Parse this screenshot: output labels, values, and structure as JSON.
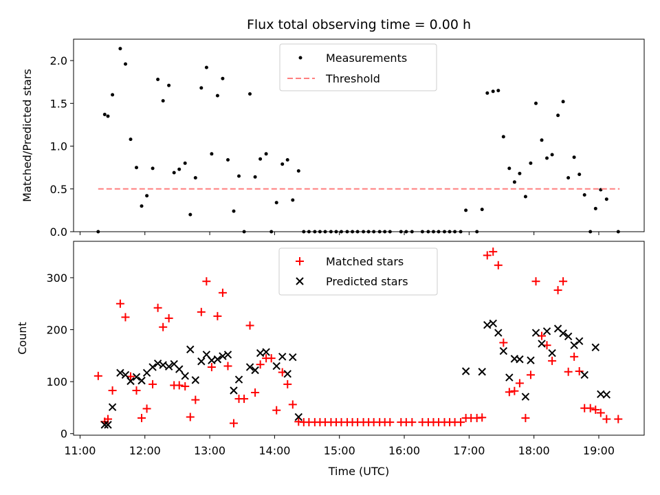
{
  "colors": {
    "measurement": "#000000",
    "threshold": "#ff7f7f",
    "matched": "#ff0000",
    "predicted": "#000000"
  },
  "chart_data": [
    {
      "type": "scatter",
      "title": "Flux total observing time = 0.00 h",
      "xlabel": "",
      "ylabel": "Matched/Predicted stars",
      "xlim": [
        10.9,
        19.7
      ],
      "ylim": [
        0,
        2.25
      ],
      "yticks": [
        0.0,
        0.5,
        1.0,
        1.5,
        2.0
      ],
      "ytick_labels": [
        "0.0",
        "0.5",
        "1.0",
        "1.5",
        "2.0"
      ],
      "legend_position": "top-center",
      "legend": [
        "Measurements",
        "Threshold"
      ],
      "threshold": {
        "name": "Threshold",
        "y": 0.5,
        "x": [
          11.28,
          19.32
        ]
      },
      "series": [
        {
          "name": "Measurements",
          "x": [
            11.28,
            11.38,
            11.43,
            11.5,
            11.62,
            11.7,
            11.78,
            11.87,
            11.95,
            12.03,
            12.12,
            12.2,
            12.28,
            12.37,
            12.45,
            12.53,
            12.62,
            12.7,
            12.78,
            12.87,
            12.95,
            13.03,
            13.12,
            13.2,
            13.28,
            13.37,
            13.45,
            13.53,
            13.62,
            13.7,
            13.78,
            13.87,
            13.95,
            14.03,
            14.12,
            14.2,
            14.28,
            14.37,
            14.45,
            14.53,
            14.62,
            14.7,
            14.78,
            14.87,
            14.95,
            15.03,
            15.12,
            15.2,
            15.28,
            15.37,
            15.45,
            15.53,
            15.62,
            15.7,
            15.78,
            15.95,
            16.03,
            16.12,
            16.28,
            16.37,
            16.45,
            16.53,
            16.62,
            16.7,
            16.78,
            16.87,
            16.95,
            17.12,
            17.2,
            17.28,
            17.37,
            17.45,
            17.53,
            17.62,
            17.7,
            17.78,
            17.87,
            17.95,
            18.03,
            18.12,
            18.2,
            18.28,
            18.37,
            18.45,
            18.53,
            18.62,
            18.7,
            18.78,
            18.87,
            18.95,
            19.03,
            19.12,
            19.3
          ],
          "y": [
            0.0,
            1.37,
            1.35,
            1.6,
            2.14,
            1.96,
            1.08,
            0.75,
            0.3,
            0.42,
            0.74,
            1.78,
            1.53,
            1.71,
            0.69,
            0.73,
            0.8,
            0.2,
            0.63,
            1.68,
            1.92,
            0.91,
            1.59,
            1.79,
            0.84,
            0.24,
            0.65,
            0.0,
            1.61,
            0.64,
            0.85,
            0.91,
            0.0,
            0.34,
            0.79,
            0.84,
            0.37,
            0.71,
            0.0,
            0.0,
            0.0,
            0.0,
            0.0,
            0.0,
            0.0,
            0.0,
            0.0,
            0.0,
            0.0,
            0.0,
            0.0,
            0.0,
            0.0,
            0.0,
            0.0,
            0.0,
            0.0,
            0.0,
            0.0,
            0.0,
            0.0,
            0.0,
            0.0,
            0.0,
            0.0,
            0.0,
            0.25,
            0.0,
            0.26,
            1.62,
            1.64,
            1.65,
            1.11,
            0.74,
            0.58,
            0.68,
            0.41,
            0.8,
            1.5,
            1.07,
            0.86,
            0.9,
            1.36,
            1.52,
            0.63,
            0.87,
            0.67,
            0.43,
            0.0,
            0.27,
            0.49,
            0.38,
            0.0
          ]
        }
      ]
    },
    {
      "type": "scatter",
      "title": "",
      "xlabel": "Time (UTC)",
      "ylabel": "Count",
      "xlim": [
        10.9,
        19.7
      ],
      "ylim": [
        -3,
        370
      ],
      "xticks": [
        11,
        12,
        13,
        14,
        15,
        16,
        17,
        18,
        19
      ],
      "xtick_labels": [
        "11:00",
        "12:00",
        "13:00",
        "14:00",
        "15:00",
        "16:00",
        "17:00",
        "18:00",
        "19:00"
      ],
      "yticks": [
        0,
        100,
        200,
        300
      ],
      "ytick_labels": [
        "0",
        "100",
        "200",
        "300"
      ],
      "legend_position": "top-center",
      "legend": [
        "Matched stars",
        "Predicted stars"
      ],
      "series": [
        {
          "name": "Matched stars",
          "marker": "+",
          "x": [
            11.28,
            11.38,
            11.43,
            11.5,
            11.62,
            11.7,
            11.78,
            11.87,
            11.95,
            12.03,
            12.12,
            12.2,
            12.28,
            12.37,
            12.45,
            12.53,
            12.62,
            12.7,
            12.78,
            12.87,
            12.95,
            13.03,
            13.12,
            13.2,
            13.28,
            13.37,
            13.45,
            13.53,
            13.62,
            13.7,
            13.78,
            13.87,
            13.95,
            14.03,
            14.12,
            14.2,
            14.28,
            14.37,
            14.45,
            14.53,
            14.62,
            14.7,
            14.78,
            14.87,
            14.95,
            15.03,
            15.12,
            15.2,
            15.28,
            15.37,
            15.45,
            15.53,
            15.62,
            15.7,
            15.78,
            15.95,
            16.03,
            16.12,
            16.28,
            16.37,
            16.45,
            16.53,
            16.62,
            16.7,
            16.78,
            16.87,
            16.95,
            17.03,
            17.12,
            17.2,
            17.28,
            17.37,
            17.45,
            17.53,
            17.62,
            17.7,
            17.78,
            17.87,
            17.95,
            18.03,
            18.12,
            18.2,
            18.28,
            18.37,
            18.45,
            18.53,
            18.62,
            18.7,
            18.78,
            18.87,
            18.95,
            19.03,
            19.12,
            19.3
          ],
          "y": [
            111,
            23,
            28,
            83,
            250,
            224,
            110,
            83,
            30,
            48,
            95,
            242,
            205,
            222,
            93,
            93,
            91,
            32,
            65,
            234,
            293,
            128,
            226,
            271,
            130,
            20,
            67,
            67,
            208,
            79,
            133,
            145,
            145,
            45,
            118,
            95,
            56,
            23,
            22,
            22,
            22,
            22,
            22,
            22,
            22,
            22,
            22,
            22,
            22,
            22,
            22,
            22,
            22,
            22,
            22,
            22,
            22,
            22,
            22,
            22,
            22,
            22,
            22,
            22,
            22,
            22,
            30,
            30,
            30,
            31,
            343,
            350,
            324,
            175,
            80,
            82,
            97,
            30,
            113,
            293,
            188,
            170,
            140,
            276,
            293,
            119,
            148,
            120,
            49,
            49,
            46,
            40,
            28,
            28
          ]
        },
        {
          "name": "Predicted stars",
          "marker": "x",
          "x": [
            11.38,
            11.43,
            11.5,
            11.62,
            11.7,
            11.78,
            11.87,
            11.95,
            12.03,
            12.12,
            12.2,
            12.28,
            12.37,
            12.45,
            12.53,
            12.62,
            12.7,
            12.78,
            12.87,
            12.95,
            13.03,
            13.12,
            13.2,
            13.28,
            13.37,
            13.45,
            13.62,
            13.7,
            13.78,
            13.87,
            14.03,
            14.12,
            14.2,
            14.28,
            14.37,
            16.95,
            17.2,
            17.28,
            17.37,
            17.45,
            17.53,
            17.62,
            17.7,
            17.78,
            17.87,
            17.95,
            18.03,
            18.12,
            18.2,
            18.28,
            18.37,
            18.45,
            18.53,
            18.62,
            18.7,
            18.78,
            18.95,
            19.03,
            19.12
          ],
          "y": [
            17,
            17,
            51,
            117,
            113,
            101,
            109,
            102,
            117,
            128,
            135,
            132,
            129,
            134,
            124,
            111,
            162,
            103,
            139,
            152,
            141,
            143,
            149,
            152,
            83,
            104,
            128,
            122,
            155,
            157,
            130,
            148,
            115,
            147,
            32,
            120,
            119,
            209,
            212,
            194,
            159,
            108,
            144,
            143,
            71,
            141,
            194,
            173,
            197,
            155,
            202,
            193,
            187,
            170,
            178,
            113,
            166,
            76,
            75
          ]
        }
      ]
    }
  ]
}
